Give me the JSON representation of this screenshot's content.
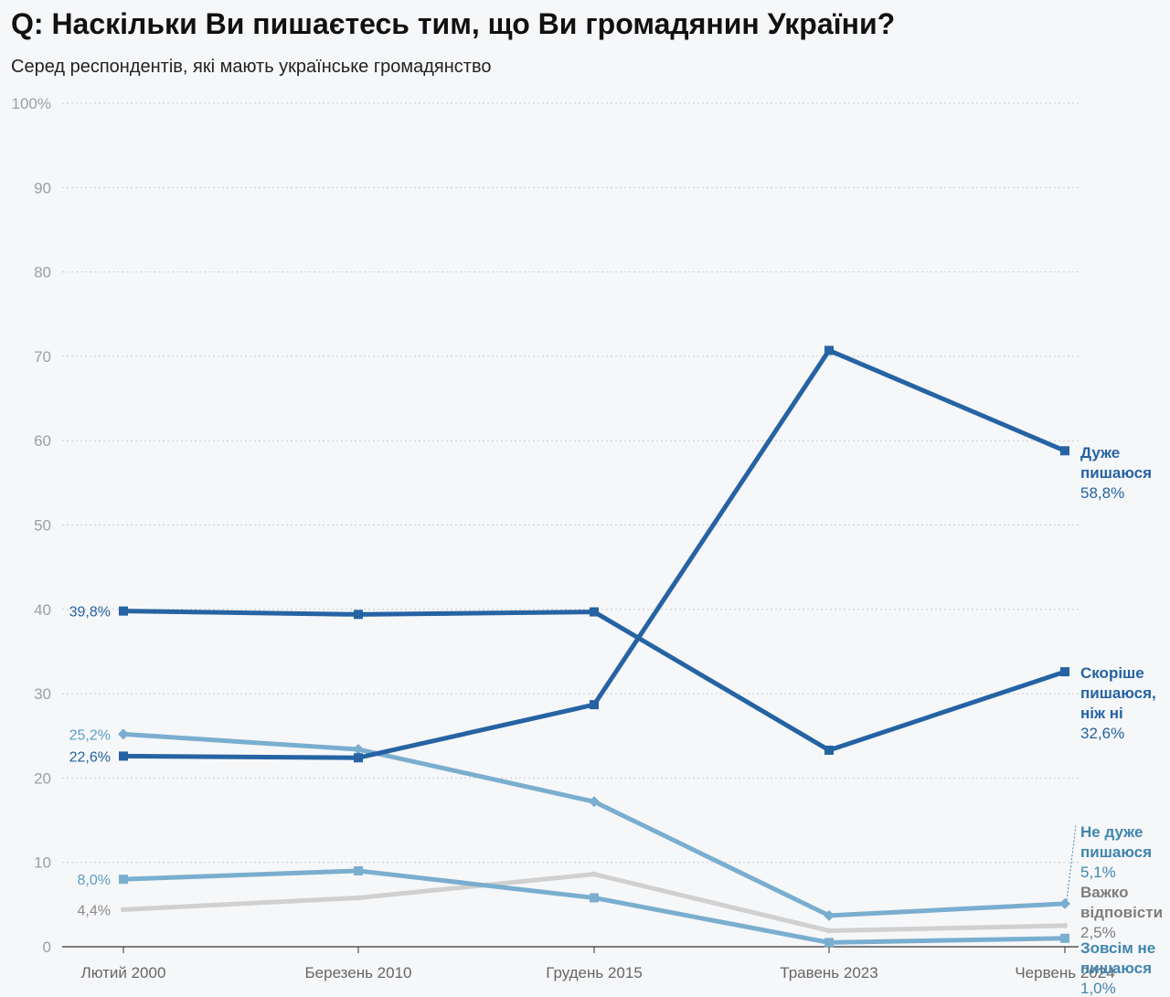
{
  "header": {
    "title": "Q: Наскільки Ви пишаєтесь тим, що Ви громадянин України?",
    "subtitle": "Серед респондентів, які мають українське громадянство"
  },
  "chart_data": {
    "type": "line",
    "title": "Q: Наскільки Ви пишаєтесь тим, що Ви громадянин України?",
    "subtitle": "Серед респондентів, які мають українське громадянство",
    "xlabel": "",
    "ylabel": "",
    "ylim": [
      0,
      100
    ],
    "y_ticks": [
      "0",
      "10",
      "20",
      "30",
      "40",
      "50",
      "60",
      "70",
      "80",
      "90",
      "100%"
    ],
    "categories": [
      "Лютий 2000",
      "Березень 2010",
      "Грудень 2015",
      "Травень 2023",
      "Червень 2024"
    ],
    "grid": true,
    "series": [
      {
        "name": "Дуже пишаюся",
        "end_label": [
          "Дуже",
          "пишаюся"
        ],
        "end_value": "58,8%",
        "values": [
          22.6,
          22.4,
          28.7,
          70.7,
          58.8
        ],
        "color": "#2563a3",
        "marker": "square"
      },
      {
        "name": "Скоріше пишаюся, ніж ні",
        "end_label": [
          "Скоріше",
          "пишаюся,",
          "ніж ні"
        ],
        "end_value": "32,6%",
        "values": [
          39.8,
          39.4,
          39.7,
          23.3,
          32.6
        ],
        "color": "#2563a3",
        "marker": "square"
      },
      {
        "name": "Не дуже пишаюся",
        "end_label": [
          "Не дуже",
          "пишаюся"
        ],
        "end_value": "5,1%",
        "values": [
          25.2,
          23.4,
          17.2,
          3.7,
          5.1
        ],
        "color": "#7aaecf",
        "marker": "diamond"
      },
      {
        "name": "Важко відповісти",
        "end_label": [
          "Важко",
          "відповісти"
        ],
        "end_value": "2,5%",
        "values": [
          4.4,
          5.8,
          8.6,
          1.9,
          2.5
        ],
        "color": "#d0d0d0",
        "marker": "none"
      },
      {
        "name": "Зовсім не пишаюся",
        "end_label": [
          "Зовсім не",
          "пишаюся"
        ],
        "end_value": "1,0%",
        "values": [
          8.0,
          9.0,
          5.8,
          0.5,
          1.0
        ],
        "color": "#7aaecf",
        "marker": "square"
      }
    ],
    "start_labels": [
      {
        "text": "39,8%",
        "value": 39.8,
        "color": "#2563a3"
      },
      {
        "text": "25,2%",
        "value": 25.2,
        "color": "#5b9ec4"
      },
      {
        "text": "22,6%",
        "value": 22.6,
        "color": "#2563a3"
      },
      {
        "text": "8,0%",
        "value": 8.0,
        "color": "#5b9ec4"
      },
      {
        "text": "4,4%",
        "value": 4.4,
        "color": "#8a8a8a"
      }
    ],
    "end_label_colors": [
      "#2563a3",
      "#2563a3",
      "#3f86b0",
      "#7d7d7d",
      "#3f86b0"
    ]
  }
}
